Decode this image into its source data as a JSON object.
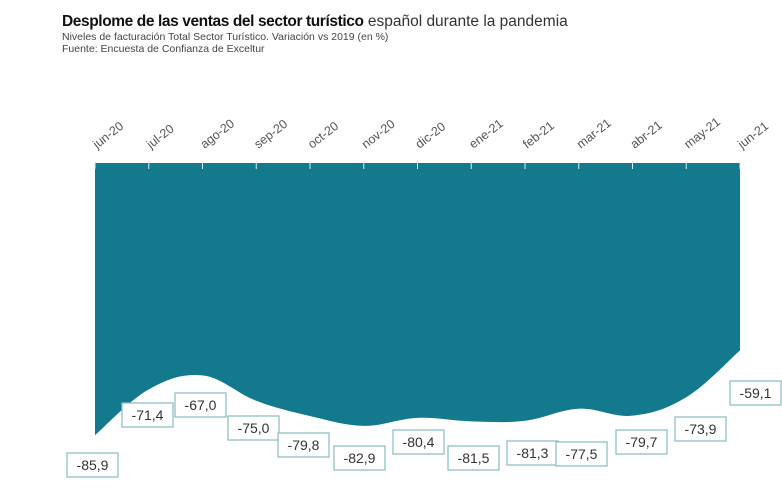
{
  "header": {
    "title_bold": "Desplome de las ventas del sector turístico",
    "title_rest": " español durante la pandemia",
    "subtitle": "Niveles de facturación Total Sector Turístico. Variación vs 2019 (en %)",
    "source": "Fuente: Encuesta de Confianza de Exceltur"
  },
  "colors": {
    "area_fill": "#137a8e",
    "label_border": "#8fbfc7",
    "tick": "#555555"
  },
  "chart_data": {
    "type": "area",
    "title": "Desplome de las ventas del sector turístico español durante la pandemia",
    "categories": [
      "jun-20",
      "jul-20",
      "ago-20",
      "sep-20",
      "oct-20",
      "nov-20",
      "dic-20",
      "ene-21",
      "feb-21",
      "mar-21",
      "abr-21",
      "may-21",
      "jun-21"
    ],
    "values": [
      -85.9,
      -71.4,
      -67.0,
      -75.0,
      -79.8,
      -82.9,
      -80.4,
      -81.5,
      -81.3,
      -77.5,
      -79.7,
      -73.9,
      -59.1
    ],
    "labels": [
      "-85,9",
      "-71,4",
      "-67,0",
      "-75,0",
      "-79,8",
      "-82,9",
      "-80,4",
      "-81,5",
      "-81,3",
      "-77,5",
      "-79,7",
      "-73,9",
      "-59,1"
    ],
    "baseline": 0,
    "ylim": [
      -88,
      0
    ],
    "xlabel": "",
    "ylabel": "",
    "x_axis_position": "top",
    "grid": false,
    "legend": "none"
  }
}
